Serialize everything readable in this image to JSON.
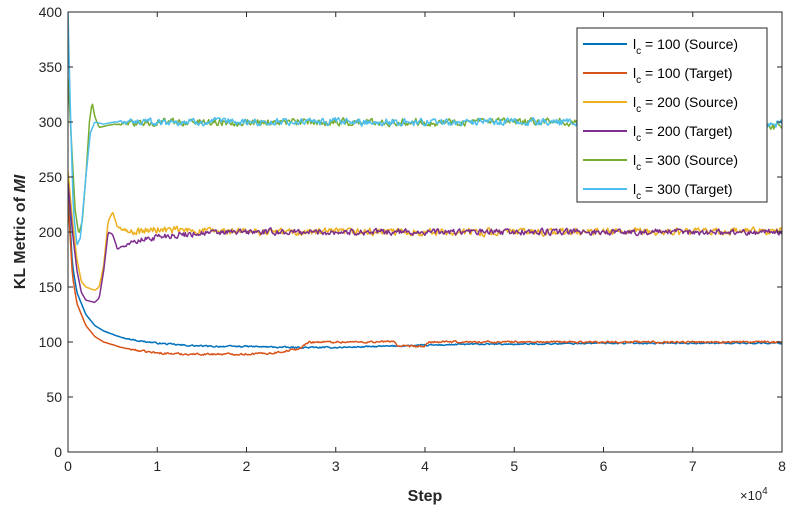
{
  "chart_data": {
    "type": "line",
    "xlabel": "Step",
    "ylabel_prefix": "KL Metric of ",
    "ylabel_italic": "MI",
    "x_multiplier_base": "×10",
    "x_multiplier_exp": "4",
    "xlim": [
      0,
      8
    ],
    "ylim": [
      0,
      400
    ],
    "xticks": [
      0,
      1,
      2,
      3,
      4,
      5,
      6,
      7,
      8
    ],
    "xtick_labels": [
      "0",
      "1",
      "2",
      "3",
      "4",
      "5",
      "6",
      "7",
      "8"
    ],
    "yticks": [
      0,
      50,
      100,
      150,
      200,
      250,
      300,
      350,
      400
    ],
    "ytick_labels": [
      "0",
      "50",
      "100",
      "150",
      "200",
      "250",
      "300",
      "350",
      "400"
    ],
    "legend_position": "top-right",
    "series": [
      {
        "name": "l_c = 100 (Source)",
        "legend_main": "l",
        "legend_sub": "c",
        "legend_rest": " = 100 (Source)",
        "color": "#0072BD",
        "noise": 0.6,
        "points": [
          [
            0,
            240
          ],
          [
            0.05,
            170
          ],
          [
            0.1,
            145
          ],
          [
            0.2,
            125
          ],
          [
            0.3,
            115
          ],
          [
            0.4,
            110
          ],
          [
            0.6,
            104
          ],
          [
            0.8,
            101
          ],
          [
            1.0,
            99
          ],
          [
            1.3,
            97
          ],
          [
            1.6,
            96
          ],
          [
            2.0,
            96
          ],
          [
            2.5,
            95
          ],
          [
            3.0,
            95
          ],
          [
            3.5,
            96
          ],
          [
            4.0,
            97
          ],
          [
            4.5,
            98
          ],
          [
            5.0,
            98
          ],
          [
            6.0,
            99
          ],
          [
            7.0,
            99
          ],
          [
            8.0,
            99
          ]
        ]
      },
      {
        "name": "l_c = 100 (Target)",
        "legend_main": "l",
        "legend_sub": "c",
        "legend_rest": " = 100 (Target)",
        "color": "#D95319",
        "noise": 0.8,
        "points": [
          [
            0,
            230
          ],
          [
            0.05,
            160
          ],
          [
            0.1,
            135
          ],
          [
            0.2,
            115
          ],
          [
            0.3,
            105
          ],
          [
            0.4,
            100
          ],
          [
            0.6,
            95
          ],
          [
            0.8,
            92
          ],
          [
            1.0,
            90
          ],
          [
            1.3,
            89
          ],
          [
            1.6,
            89
          ],
          [
            2.0,
            89
          ],
          [
            2.3,
            90
          ],
          [
            2.6,
            94
          ],
          [
            2.7,
            100
          ],
          [
            3.0,
            100
          ],
          [
            3.5,
            100
          ],
          [
            3.65,
            101
          ],
          [
            3.7,
            96
          ],
          [
            4.0,
            96
          ],
          [
            4.05,
            100
          ],
          [
            4.5,
            100
          ],
          [
            5.0,
            100
          ],
          [
            6.0,
            100
          ],
          [
            7.0,
            100
          ],
          [
            8.0,
            100
          ]
        ]
      },
      {
        "name": "l_c = 200 (Source)",
        "legend_main": "l",
        "legend_sub": "c",
        "legend_rest": " = 200 (Source)",
        "color": "#EDB120",
        "noise": 3,
        "points": [
          [
            0,
            255
          ],
          [
            0.05,
            210
          ],
          [
            0.1,
            175
          ],
          [
            0.15,
            155
          ],
          [
            0.2,
            150
          ],
          [
            0.3,
            147
          ],
          [
            0.35,
            150
          ],
          [
            0.4,
            170
          ],
          [
            0.45,
            210
          ],
          [
            0.5,
            218
          ],
          [
            0.55,
            205
          ],
          [
            0.7,
            200
          ],
          [
            1.0,
            202
          ],
          [
            1.5,
            201
          ],
          [
            2.0,
            200
          ],
          [
            3.0,
            200
          ],
          [
            4.0,
            200
          ],
          [
            5.0,
            200
          ],
          [
            6.0,
            200
          ],
          [
            7.0,
            200
          ],
          [
            8.0,
            201
          ]
        ]
      },
      {
        "name": "l_c = 200 (Target)",
        "legend_main": "l",
        "legend_sub": "c",
        "legend_rest": " = 200 (Target)",
        "color": "#7E2F8E",
        "noise": 2.5,
        "points": [
          [
            0,
            245
          ],
          [
            0.05,
            200
          ],
          [
            0.1,
            165
          ],
          [
            0.15,
            145
          ],
          [
            0.2,
            138
          ],
          [
            0.3,
            136
          ],
          [
            0.35,
            140
          ],
          [
            0.4,
            165
          ],
          [
            0.45,
            200
          ],
          [
            0.5,
            198
          ],
          [
            0.55,
            185
          ],
          [
            0.7,
            190
          ],
          [
            1.0,
            196
          ],
          [
            1.5,
            199
          ],
          [
            2.0,
            200
          ],
          [
            3.0,
            200
          ],
          [
            4.0,
            200
          ],
          [
            5.0,
            200
          ],
          [
            6.0,
            200
          ],
          [
            7.0,
            200
          ],
          [
            8.0,
            200
          ]
        ]
      },
      {
        "name": "l_c = 300 (Source)",
        "legend_main": "l",
        "legend_sub": "c",
        "legend_rest": " = 300 (Source)",
        "color": "#77AC30",
        "noise": 3,
        "points": [
          [
            0,
            340
          ],
          [
            0.04,
            280
          ],
          [
            0.08,
            220
          ],
          [
            0.12,
            198
          ],
          [
            0.16,
            210
          ],
          [
            0.2,
            250
          ],
          [
            0.24,
            300
          ],
          [
            0.27,
            318
          ],
          [
            0.3,
            305
          ],
          [
            0.35,
            295
          ],
          [
            0.5,
            298
          ],
          [
            1.0,
            300
          ],
          [
            1.5,
            300
          ],
          [
            2.0,
            300
          ],
          [
            3.0,
            300
          ],
          [
            4.0,
            300
          ],
          [
            5.0,
            300
          ],
          [
            6.0,
            300
          ],
          [
            7.0,
            300
          ],
          [
            7.9,
            296
          ],
          [
            8.0,
            294
          ]
        ]
      },
      {
        "name": "l_c = 300 (Target)",
        "legend_main": "l",
        "legend_sub": "c",
        "legend_rest": " = 300 (Target)",
        "color": "#4DBEEE",
        "noise": 3,
        "points": [
          [
            0,
            400
          ],
          [
            0.03,
            300
          ],
          [
            0.06,
            220
          ],
          [
            0.1,
            188
          ],
          [
            0.14,
            195
          ],
          [
            0.2,
            250
          ],
          [
            0.25,
            290
          ],
          [
            0.3,
            300
          ],
          [
            0.4,
            298
          ],
          [
            0.5,
            300
          ],
          [
            1.0,
            300
          ],
          [
            1.5,
            300
          ],
          [
            2.0,
            300
          ],
          [
            3.0,
            300
          ],
          [
            4.0,
            300
          ],
          [
            5.0,
            300
          ],
          [
            6.0,
            300
          ],
          [
            7.0,
            300
          ],
          [
            7.8,
            298
          ],
          [
            8.0,
            299
          ]
        ]
      }
    ]
  }
}
